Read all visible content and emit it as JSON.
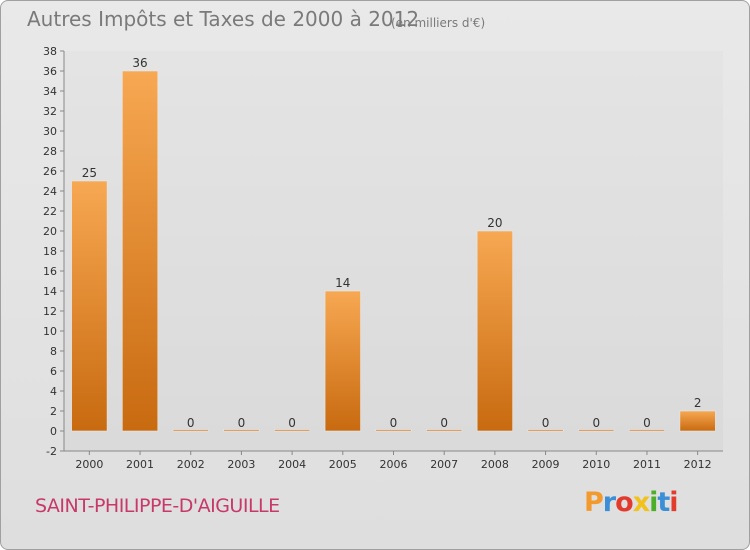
{
  "header": {
    "title": "Autres Impôts et Taxes de 2000 à 2012",
    "subtitle": "(en milliers d'€)"
  },
  "footer": {
    "commune": "SAINT-PHILIPPE-D'AIGUILLE",
    "logo_letters": [
      "P",
      "r",
      "o",
      "x",
      "i",
      "t",
      "i"
    ],
    "logo_colors": [
      "#f29a2e",
      "#3a8fd6",
      "#e23b2e",
      "#f2c21b",
      "#4caf2a",
      "#3a8fd6",
      "#e23b2e"
    ]
  },
  "chart_data": {
    "type": "bar",
    "title": "Autres Impôts et Taxes de 2000 à 2012",
    "subtitle": "(en milliers d'€)",
    "categories": [
      "2000",
      "2001",
      "2002",
      "2003",
      "2004",
      "2005",
      "2006",
      "2007",
      "2008",
      "2009",
      "2010",
      "2011",
      "2012"
    ],
    "values": [
      25,
      36,
      0,
      0,
      0,
      14,
      0,
      0,
      20,
      0,
      0,
      0,
      2
    ],
    "data_labels": [
      "25",
      "36",
      "0",
      "0",
      "0",
      "14",
      "0",
      "0",
      "20",
      "0",
      "0",
      "0",
      "2"
    ],
    "ylim": [
      -2,
      38
    ],
    "yticks": [
      -2,
      0,
      2,
      4,
      6,
      8,
      10,
      12,
      14,
      16,
      18,
      20,
      22,
      24,
      26,
      28,
      30,
      32,
      34,
      36,
      38
    ],
    "grid": false,
    "legend": "none",
    "bar_color": "#f0902e",
    "bar_color_dark": "#c86a10"
  }
}
